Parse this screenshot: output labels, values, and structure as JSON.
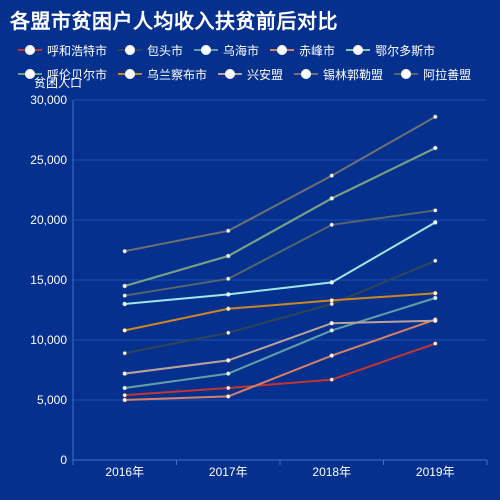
{
  "title": "各盟市贫困户人均收入扶贫前后对比",
  "colors": {
    "background": "#06308e",
    "grid": "#1b50b0",
    "axis": "#3f72c8",
    "text": "#ffffff"
  },
  "chart_data": {
    "type": "line",
    "ylabel": "贫困人口",
    "ylim": [
      0,
      30000
    ],
    "yticks": [
      0,
      5000,
      10000,
      15000,
      20000,
      25000,
      30000
    ],
    "yticklabels": [
      "0",
      "5,000",
      "10,000",
      "15,000",
      "20,000",
      "25,000",
      "30,000"
    ],
    "categories": [
      "2016年",
      "2017年",
      "2018年",
      "2019年"
    ],
    "grid": true,
    "legend_position": "top",
    "series": [
      {
        "name": "呼和浩特市",
        "color": "#c23531",
        "values": [
          5400,
          6000,
          6700,
          9700
        ]
      },
      {
        "name": "包头市",
        "color": "#2f4554",
        "values": [
          8900,
          10600,
          13000,
          16600
        ]
      },
      {
        "name": "乌海市",
        "color": "#61a0a8",
        "values": [
          6000,
          7200,
          10800,
          13500
        ]
      },
      {
        "name": "赤峰市",
        "color": "#d48265",
        "values": [
          5000,
          5300,
          8700,
          11700
        ]
      },
      {
        "name": "鄂尔多斯市",
        "color": "#91c7ae",
        "values": [
          14500,
          17000,
          21800,
          26000
        ]
      },
      {
        "name": "呼伦贝尔市",
        "color": "#749f83",
        "values": [
          14500,
          17000,
          21800,
          26000
        ]
      },
      {
        "name": "乌兰察布市",
        "color": "#ca8622",
        "values": [
          10800,
          12600,
          13300,
          13900
        ]
      },
      {
        "name": "兴安盟",
        "color": "#bda29a",
        "values": [
          7200,
          8300,
          11400,
          11600
        ]
      },
      {
        "name": "锡林郭勒盟",
        "color": "#6e7074",
        "values": [
          17400,
          19100,
          23700,
          28600
        ]
      },
      {
        "name": "阿拉善盟",
        "color": "#546570",
        "values": [
          13700,
          15100,
          19600,
          20800
        ]
      },
      {
        "name": "",
        "color": "#9ee7e5",
        "values": [
          13000,
          13800,
          14800,
          19800
        ]
      }
    ]
  }
}
